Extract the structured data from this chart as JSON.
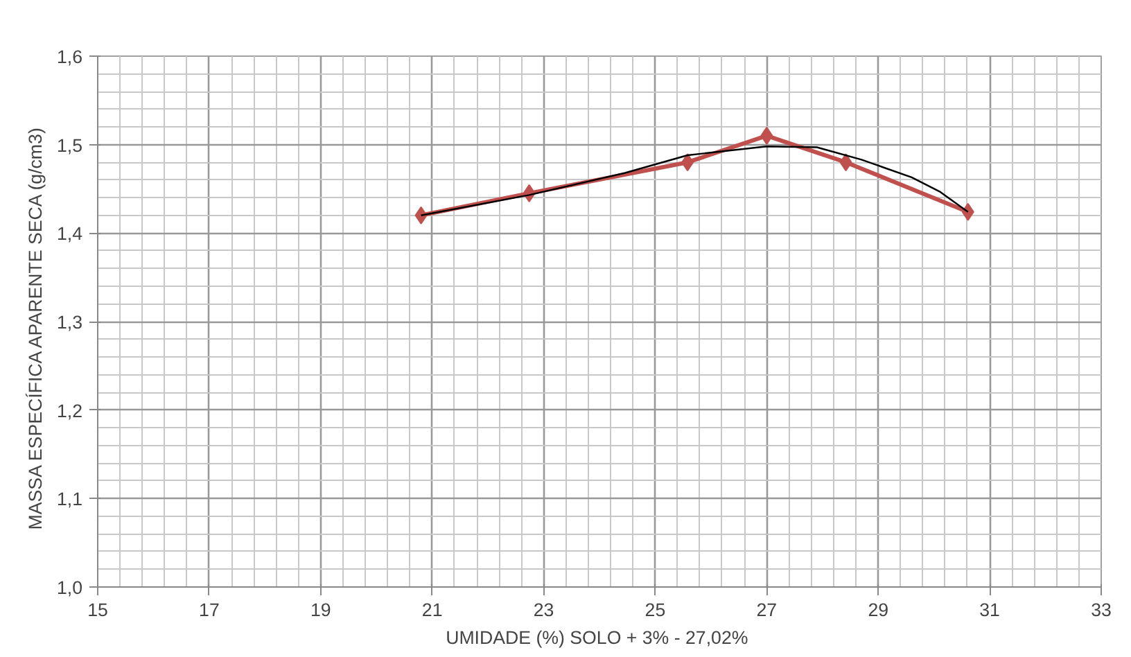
{
  "chart_data": {
    "type": "line",
    "xlabel": "UMIDADE  (%) SOLO + 3% - 27,02%",
    "ylabel": "MASSA ESPECÍFICA  APARENTE  SECA (g/cm3)",
    "xlim": [
      15,
      33
    ],
    "xticks": [
      15,
      17,
      19,
      21,
      23,
      25,
      27,
      29,
      31,
      33
    ],
    "ylim": [
      1.0,
      1.6
    ],
    "yticks": [
      {
        "value": 1.0,
        "label": "1,0"
      },
      {
        "value": 1.1,
        "label": "1,1"
      },
      {
        "value": 1.2,
        "label": "1,2"
      },
      {
        "value": 1.3,
        "label": "1,3"
      },
      {
        "value": 1.4,
        "label": "1,4"
      },
      {
        "value": 1.5,
        "label": "1,5"
      },
      {
        "value": 1.6,
        "label": "1,6"
      }
    ],
    "grid": true,
    "series": [
      {
        "color": "#000000",
        "marker": "none",
        "x": [
          20.8,
          22.74,
          24.46,
          25.58,
          27.0,
          27.9,
          28.7,
          29.6,
          30.1,
          30.61
        ],
        "values": [
          1.42,
          1.443,
          1.468,
          1.488,
          1.498,
          1.497,
          1.483,
          1.463,
          1.447,
          1.424
        ]
      },
      {
        "color": "#c0504d",
        "marker": "diamond",
        "x": [
          20.8,
          22.74,
          25.58,
          27.0,
          28.42,
          30.61
        ],
        "values": [
          1.42,
          1.445,
          1.48,
          1.51,
          1.48,
          1.424
        ]
      }
    ]
  }
}
